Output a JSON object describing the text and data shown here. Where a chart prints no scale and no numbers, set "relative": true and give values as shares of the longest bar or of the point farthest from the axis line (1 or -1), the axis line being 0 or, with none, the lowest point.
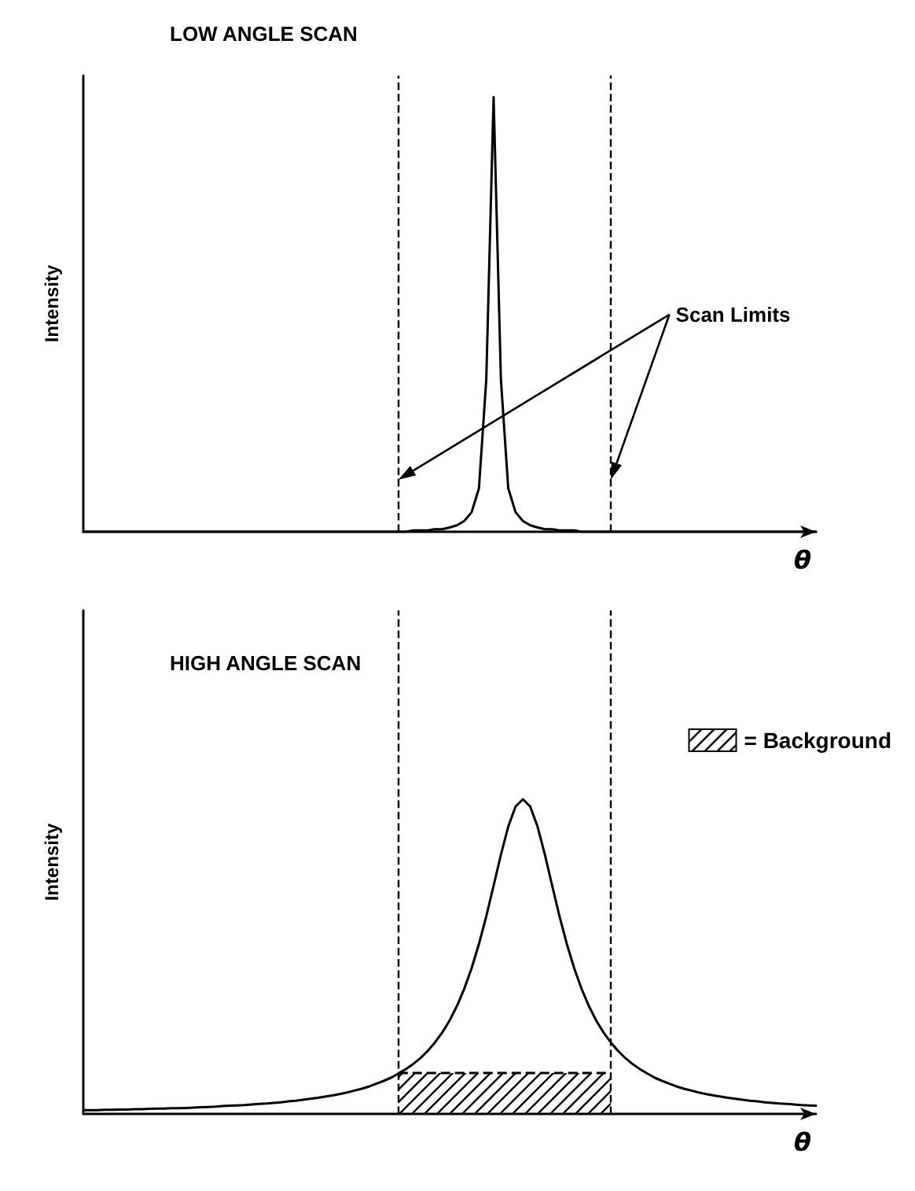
{
  "chart_data": [
    {
      "type": "line",
      "title": "LOW ANGLE SCAN",
      "ylabel": "Intensity",
      "xlabel": "θ",
      "relative": true,
      "grid": false,
      "marker": "none",
      "legend": false,
      "categories": [
        null,
        null,
        null,
        null,
        null,
        null,
        null,
        null,
        null,
        null,
        null,
        null,
        null,
        null,
        null,
        null,
        null,
        null,
        null,
        null,
        null,
        null,
        null,
        null,
        null,
        null,
        null,
        null,
        null,
        null,
        null,
        null,
        null,
        null,
        null,
        null,
        null,
        null,
        null,
        null,
        null,
        null,
        null,
        null,
        null,
        null,
        null,
        null,
        null,
        null,
        null,
        null,
        null,
        null,
        null,
        null,
        null,
        null,
        null,
        null,
        null,
        null,
        null,
        null,
        null,
        null,
        null,
        null,
        null,
        null,
        null,
        null,
        null,
        null,
        null,
        null,
        null,
        null,
        null,
        null,
        null,
        null,
        null,
        null,
        null,
        null,
        null,
        null,
        null,
        null,
        null,
        null,
        null,
        null,
        null,
        null,
        null,
        null,
        null,
        null,
        null
      ],
      "series": [
        {
          "color": "#000000",
          "values": [
            0,
            0,
            0,
            0,
            0,
            0,
            0,
            0,
            0,
            0,
            0,
            0,
            0,
            0,
            0,
            0,
            0,
            0,
            0,
            0,
            0,
            0,
            0,
            0,
            0,
            0,
            0,
            0,
            0,
            0,
            0,
            0,
            0,
            0,
            0,
            0,
            0,
            0,
            0,
            0,
            0,
            0,
            0,
            0,
            0,
            0.003,
            0.003,
            0.003,
            0.006,
            0.006,
            0.01,
            0.015,
            0.025,
            0.045,
            0.1,
            0.35,
            1,
            0.35,
            0.1,
            0.045,
            0.025,
            0.015,
            0.01,
            0.006,
            0.006,
            0.003,
            0.003,
            0.003,
            0,
            0,
            0,
            0,
            0,
            0,
            0,
            0,
            0,
            0,
            0,
            0,
            0,
            0,
            0,
            0,
            0,
            0,
            0,
            0,
            0,
            0,
            0,
            0,
            0,
            0,
            0,
            0,
            0,
            0,
            0,
            0,
            0
          ]
        }
      ],
      "annotations": [
        "Scan Limits"
      ]
    },
    {
      "type": "line",
      "title": "HIGH ANGLE SCAN",
      "ylabel": "Intensity",
      "xlabel": "θ",
      "relative": true,
      "grid": false,
      "marker": "none",
      "legend": "top right",
      "categories": [
        null,
        null,
        null,
        null,
        null,
        null,
        null,
        null,
        null,
        null,
        null,
        null,
        null,
        null,
        null,
        null,
        null,
        null,
        null,
        null,
        null,
        null,
        null,
        null,
        null,
        null,
        null,
        null,
        null,
        null,
        null,
        null,
        null,
        null,
        null,
        null,
        null,
        null,
        null,
        null,
        null,
        null,
        null,
        null,
        null,
        null,
        null,
        null,
        null,
        null,
        null,
        null,
        null,
        null,
        null,
        null,
        null,
        null,
        null,
        null,
        null,
        null,
        null,
        null,
        null,
        null,
        null,
        null,
        null,
        null,
        null,
        null,
        null,
        null,
        null,
        null,
        null,
        null,
        null,
        null,
        null,
        null,
        null,
        null,
        null,
        null,
        null,
        null,
        null,
        null,
        null,
        null,
        null,
        null,
        null,
        null,
        null,
        null,
        null,
        null,
        null
      ],
      "series": [
        {
          "color": "#000000",
          "values": [
            0.012,
            0.012,
            0.012,
            0.013,
            0.013,
            0.014,
            0.014,
            0.015,
            0.015,
            0.016,
            0.017,
            0.017,
            0.018,
            0.018,
            0.019,
            0.02,
            0.021,
            0.022,
            0.023,
            0.025,
            0.026,
            0.027,
            0.028,
            0.03,
            0.032,
            0.033,
            0.035,
            0.037,
            0.04,
            0.042,
            0.045,
            0.048,
            0.051,
            0.055,
            0.059,
            0.063,
            0.068,
            0.074,
            0.08,
            0.087,
            0.096,
            0.105,
            0.115,
            0.128,
            0.142,
            0.158,
            0.177,
            0.2,
            0.227,
            0.259,
            0.297,
            0.343,
            0.398,
            0.463,
            0.54,
            0.628,
            0.725,
            0.824,
            0.913,
            0.977,
            1,
            0.977,
            0.913,
            0.824,
            0.725,
            0.628,
            0.54,
            0.463,
            0.398,
            0.343,
            0.297,
            0.259,
            0.227,
            0.2,
            0.177,
            0.158,
            0.142,
            0.128,
            0.115,
            0.105,
            0.096,
            0.087,
            0.08,
            0.074,
            0.068,
            0.063,
            0.059,
            0.055,
            0.051,
            0.048,
            0.045,
            0.042,
            0.04,
            0.037,
            0.035,
            0.033,
            0.032,
            0.03,
            0.028,
            0.027,
            0.026
          ]
        },
        {
          "type": "area",
          "name": "= Background",
          "color": "#000000",
          "values": [
            null,
            null,
            null,
            null,
            null,
            null,
            null,
            null,
            null,
            null,
            null,
            null,
            null,
            null,
            null,
            null,
            null,
            null,
            null,
            null,
            null,
            null,
            null,
            null,
            null,
            null,
            null,
            null,
            null,
            null,
            null,
            null,
            null,
            null,
            null,
            null,
            null,
            null,
            null,
            null,
            null,
            null,
            null,
            0.13,
            0.13,
            0.13,
            0.13,
            0.13,
            0.13,
            0.13,
            0.13,
            0.13,
            0.13,
            0.13,
            0.13,
            0.13,
            0.13,
            0.13,
            0.13,
            0.13,
            0.13,
            0.13,
            0.13,
            0.13,
            0.13,
            0.13,
            0.13,
            0.13,
            0.13,
            0.13,
            0.13,
            0.13,
            0.13,
            null,
            null,
            null,
            null,
            null,
            null,
            null,
            null,
            null,
            null,
            null,
            null,
            null,
            null,
            null,
            null,
            null,
            null,
            null,
            null,
            null,
            null,
            null,
            null,
            null,
            null,
            null,
            null
          ]
        }
      ]
    }
  ]
}
